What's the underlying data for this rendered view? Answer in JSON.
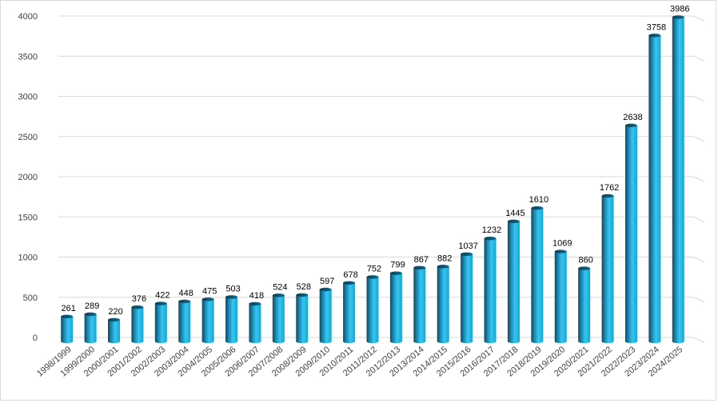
{
  "chart_data": {
    "type": "bar",
    "style": "3d-cylinder",
    "categories": [
      "1998/1999",
      "1999/2000",
      "2000/2001",
      "2001/2002",
      "2002/2003",
      "2003/2004",
      "2004/2005",
      "2005/2006",
      "2006/2007",
      "2007/2008",
      "2008/2009",
      "2009/2010",
      "2010/2011",
      "2011/2012",
      "2012/2013",
      "2013/2014",
      "2014/2015",
      "2015/2016",
      "2016/2017",
      "2017/2018",
      "2018/2019",
      "2019/2020",
      "2020/2021",
      "2021/2022",
      "2022/2023",
      "2023/2024",
      "2024/2025"
    ],
    "values": [
      261,
      289,
      220,
      376,
      422,
      448,
      475,
      503,
      418,
      524,
      528,
      597,
      678,
      752,
      799,
      867,
      882,
      1037,
      1232,
      1445,
      1610,
      1069,
      860,
      1762,
      2638,
      3758,
      3986
    ],
    "data_labels": [
      "261",
      "289",
      "220",
      "376",
      "422",
      "448",
      "475",
      "503",
      "418",
      "524",
      "528",
      "597",
      "678",
      "752",
      "799",
      "867",
      "882",
      "1037",
      "1232",
      "1445",
      "1610",
      "1069",
      "860",
      "1762",
      "2638",
      "3758",
      "3986"
    ],
    "y_ticks": [
      0,
      500,
      1000,
      1500,
      2000,
      2500,
      3000,
      3500,
      4000
    ],
    "ylim": [
      0,
      4000
    ],
    "grid": true,
    "legend": "none",
    "title": "",
    "xlabel": "",
    "ylabel": "",
    "colors": {
      "bar_light": "#33c2ee",
      "bar_dark": "#0a4a64",
      "gridline": "#d9d9d9",
      "tick_text": "#404040",
      "label_text": "#000000"
    }
  }
}
